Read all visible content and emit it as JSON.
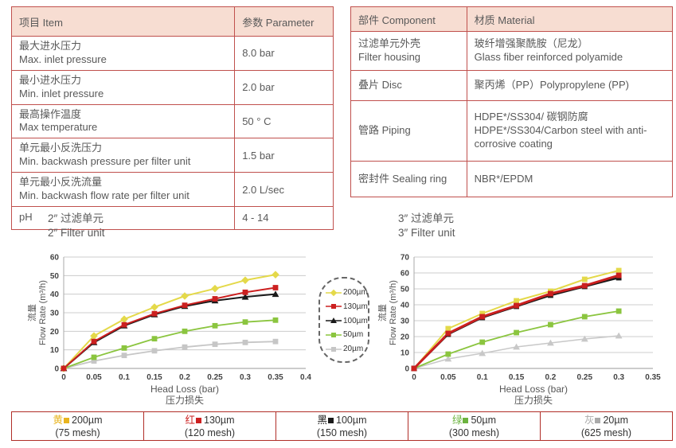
{
  "page": {
    "accent_red": "#c0504d",
    "header_bg": "#f7ddd2",
    "text_gray": "#595959"
  },
  "tables": {
    "parameters": {
      "header": {
        "item": "项目 Item",
        "parameter": "参数 Parameter"
      },
      "rows": [
        {
          "cn": "最大进水压力",
          "en": "Max. inlet pressure",
          "value": "8.0 bar"
        },
        {
          "cn": "最小进水压力",
          "en": "Min. inlet pressure",
          "value": "2.0 bar"
        },
        {
          "cn": "最高操作温度",
          "en": "Max temperature",
          "value": "50 ° C"
        },
        {
          "cn": "单元最小反洗压力",
          "en": "Min. backwash pressure per filter unit",
          "value": "1.5 bar"
        },
        {
          "cn": "单元最小反洗流量",
          "en": "Min. backwash flow rate per filter unit",
          "value": "2.0 L/sec"
        },
        {
          "cn": "pH",
          "en": "",
          "value": "4 - 14"
        }
      ]
    },
    "materials": {
      "header": {
        "component": "部件 Component",
        "material": "材质 Material"
      },
      "rows": [
        {
          "cn": "过滤单元外壳",
          "en": "Filter housing",
          "mat_cn": "玻纤增强聚酰胺（尼龙）",
          "mat_en": "Glass fiber reinforced polyamide"
        },
        {
          "cn": "叠片 Disc",
          "en": "",
          "mat_cn": "聚丙烯（PP）Polypropylene (PP)",
          "mat_en": ""
        },
        {
          "cn": "管路 Piping",
          "en": "",
          "mat_cn": "HDPE*/SS304/ 碳钢防腐",
          "mat_en": "HDPE*/SS304/Carbon steel with anti-corrosive coating"
        },
        {
          "cn": "密封件 Sealing ring",
          "en": "",
          "mat_cn": "NBR*/EPDM",
          "mat_en": ""
        }
      ]
    }
  },
  "legend_box": {
    "items": [
      {
        "label": "200µm",
        "color": "#e4d94a",
        "marker": "diamond"
      },
      {
        "label": "130µm",
        "color": "#cc2020",
        "marker": "square"
      },
      {
        "label": "100µm",
        "color": "#1a1a1a",
        "marker": "triangle"
      },
      {
        "label": "50µm",
        "color": "#8bc53f",
        "marker": "square"
      },
      {
        "label": "20µm",
        "color": "#c6c6c6",
        "marker": "square"
      }
    ]
  },
  "legend_strip": {
    "items": [
      {
        "cn": "黄",
        "color": "#e8b41e",
        "label": "200µm",
        "mesh": "(75 mesh)"
      },
      {
        "cn": "红",
        "color": "#cc2020",
        "label": "130µm",
        "mesh": "(120 mesh)"
      },
      {
        "cn": "黑",
        "color": "#1a1a1a",
        "label": "100µm",
        "mesh": "(150 mesh)"
      },
      {
        "cn": "绿",
        "color": "#6cb33f",
        "label": "50µm",
        "mesh": "(300 mesh)"
      },
      {
        "cn": "灰",
        "color": "#aaaaaa",
        "label": "20µm",
        "mesh": "(625 mesh)"
      }
    ]
  },
  "chart_data": [
    {
      "type": "line",
      "title_cn": "2″ 过滤单元",
      "title_en": "2″ Filter unit",
      "xlabel_en": "Head Loss (bar)",
      "xlabel_cn": "压力损失",
      "ylabel_cn": "流量",
      "ylabel_en": "Flow Rate (m³/h)",
      "xlim": [
        0,
        0.4
      ],
      "ylim": [
        0,
        60
      ],
      "xticks": [
        0,
        0.05,
        0.1,
        0.15,
        0.2,
        0.25,
        0.3,
        0.35,
        0.4
      ],
      "yticks": [
        0,
        10,
        20,
        30,
        40,
        50,
        60
      ],
      "x": [
        0,
        0.05,
        0.1,
        0.15,
        0.2,
        0.25,
        0.3,
        0.35
      ],
      "grid": true,
      "series": [
        {
          "name": "200µm",
          "color": "#e4d94a",
          "marker": "diamond",
          "lw": 2,
          "values": [
            0,
            17.5,
            26.5,
            33,
            39,
            43,
            47.5,
            50.5
          ]
        },
        {
          "name": "130µm",
          "color": "#cc2020",
          "marker": "square",
          "lw": 2,
          "values": [
            0,
            14.5,
            23.5,
            29.5,
            34,
            37.5,
            41,
            43.5
          ]
        },
        {
          "name": "100µm",
          "color": "#1a1a1a",
          "marker": "triangle",
          "lw": 2,
          "values": [
            0,
            14,
            23,
            29,
            33.5,
            36.5,
            38.5,
            40
          ]
        },
        {
          "name": "50µm",
          "color": "#8bc53f",
          "marker": "square",
          "lw": 1.8,
          "values": [
            0,
            6,
            11,
            16,
            20,
            23,
            25,
            26
          ]
        },
        {
          "name": "20µm",
          "color": "#c6c6c6",
          "marker": "square",
          "lw": 1.8,
          "values": [
            0,
            4,
            7,
            9.5,
            11.5,
            13,
            14,
            14.5
          ]
        }
      ]
    },
    {
      "type": "line",
      "title_cn": "3″ 过滤单元",
      "title_en": "3″ Filter unit",
      "xlabel_en": "Head Loss (bar)",
      "xlabel_cn": "压力损失",
      "ylabel_cn": "流量",
      "ylabel_en": "Flow Rate (m³/h)",
      "xlim": [
        0,
        0.35
      ],
      "ylim": [
        0,
        70
      ],
      "xticks": [
        0,
        0.05,
        0.1,
        0.15,
        0.2,
        0.25,
        0.3,
        0.35
      ],
      "yticks": [
        0,
        10,
        20,
        30,
        40,
        50,
        60,
        70
      ],
      "x": [
        0,
        0.05,
        0.1,
        0.15,
        0.2,
        0.25,
        0.3
      ],
      "grid": true,
      "series": [
        {
          "name": "200µm",
          "color": "#e4d94a",
          "marker": "square",
          "lw": 2,
          "values": [
            0,
            25,
            34.5,
            42.5,
            48.5,
            56,
            61.5
          ]
        },
        {
          "name": "130µm",
          "color": "#cc2020",
          "marker": "square",
          "lw": 3,
          "values": [
            0,
            22,
            32.5,
            39.5,
            47,
            52,
            58.5
          ]
        },
        {
          "name": "100µm",
          "color": "#1a1a1a",
          "marker": "square",
          "lw": 2.5,
          "values": [
            0,
            21.5,
            32,
            39,
            46,
            51.5,
            57
          ]
        },
        {
          "name": "50µm",
          "color": "#8bc53f",
          "marker": "square",
          "lw": 1.8,
          "values": [
            0,
            9,
            16.5,
            22.5,
            27.5,
            32.5,
            36
          ]
        },
        {
          "name": "20µm",
          "color": "#c8c8c8",
          "marker": "triangle",
          "lw": 1.5,
          "values": [
            0,
            6,
            9.5,
            13.5,
            16,
            18.5,
            20.5
          ]
        }
      ]
    }
  ]
}
